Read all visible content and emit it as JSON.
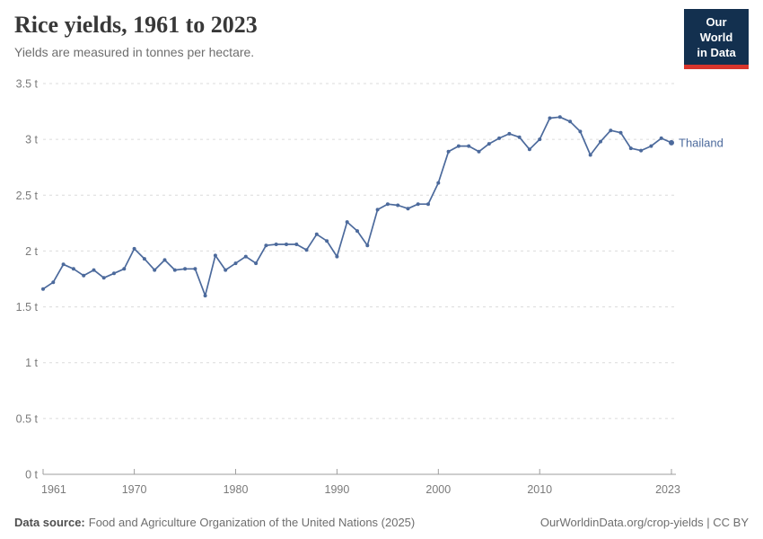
{
  "header": {
    "title": "Rice yields, 1961 to 2023",
    "subtitle": "Yields are measured in tonnes per hectare."
  },
  "logo": {
    "line1": "Our World",
    "line2": "in Data",
    "bg_color": "#13304F",
    "accent_color": "#D8352C"
  },
  "chart_data": {
    "type": "line",
    "title": "Rice yields, 1961 to 2023",
    "ylabel": "tonnes per hectare",
    "xlabel": "",
    "xlim": [
      1961,
      2023
    ],
    "ylim": [
      0,
      3.5
    ],
    "x_ticks": [
      1961,
      1970,
      1980,
      1990,
      2000,
      2010,
      2023
    ],
    "y_ticks": [
      0,
      0.5,
      1,
      1.5,
      2,
      2.5,
      3,
      3.5
    ],
    "y_tick_suffix": " t",
    "grid": "dashed-horizontal",
    "legend_position": "end-of-line-label",
    "series": [
      {
        "name": "Thailand",
        "color": "#4C6A9C",
        "x": [
          1961,
          1962,
          1963,
          1964,
          1965,
          1966,
          1967,
          1968,
          1969,
          1970,
          1971,
          1972,
          1973,
          1974,
          1975,
          1976,
          1977,
          1978,
          1979,
          1980,
          1981,
          1982,
          1983,
          1984,
          1985,
          1986,
          1987,
          1988,
          1989,
          1990,
          1991,
          1992,
          1993,
          1994,
          1995,
          1996,
          1997,
          1998,
          1999,
          2000,
          2001,
          2002,
          2003,
          2004,
          2005,
          2006,
          2007,
          2008,
          2009,
          2010,
          2011,
          2012,
          2013,
          2014,
          2015,
          2016,
          2017,
          2018,
          2019,
          2020,
          2021,
          2022,
          2023
        ],
        "values": [
          1.66,
          1.72,
          1.88,
          1.84,
          1.78,
          1.83,
          1.76,
          1.8,
          1.84,
          2.02,
          1.93,
          1.83,
          1.92,
          1.83,
          1.84,
          1.84,
          1.6,
          1.96,
          1.83,
          1.89,
          1.95,
          1.89,
          2.05,
          2.06,
          2.06,
          2.06,
          2.01,
          2.15,
          2.09,
          1.95,
          2.26,
          2.18,
          2.05,
          2.37,
          2.42,
          2.41,
          2.38,
          2.42,
          2.42,
          2.61,
          2.89,
          2.94,
          2.94,
          2.89,
          2.96,
          3.01,
          3.05,
          3.02,
          2.91,
          3.0,
          3.19,
          3.2,
          3.16,
          3.07,
          2.86,
          2.98,
          3.08,
          3.06,
          2.92,
          2.9,
          2.94,
          3.01,
          2.97
        ]
      }
    ]
  },
  "footer": {
    "source_label": "Data source:",
    "source_text": "Food and Agriculture Organization of the United Nations (2025)",
    "link_text": "OurWorldinData.org/crop-yields | CC BY"
  }
}
